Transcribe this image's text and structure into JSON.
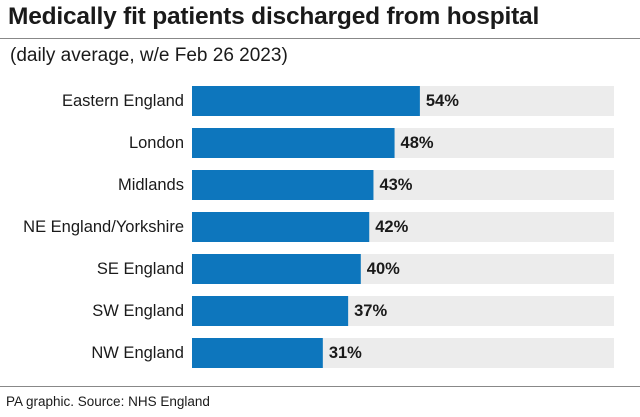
{
  "title": "Medically fit patients discharged from hospital",
  "subtitle": "(daily average, w/e Feb 26 2023)",
  "source": "PA graphic. Source: NHS England",
  "colors": {
    "bar": "#0d76bd",
    "track": "#ececec",
    "text": "#1a1a1a",
    "rule": "#888888"
  },
  "chart_data": {
    "type": "bar",
    "orientation": "horizontal",
    "categories": [
      "Eastern England",
      "London",
      "Midlands",
      "NE England/Yorkshire",
      "SE England",
      "SW England",
      "NW England"
    ],
    "values": [
      54,
      48,
      43,
      42,
      40,
      37,
      31
    ],
    "value_labels": [
      "54%",
      "48%",
      "43%",
      "42%",
      "40%",
      "37%",
      "31%"
    ],
    "unit": "%",
    "xlim": [
      0,
      100
    ],
    "grid": false,
    "legend": "none"
  }
}
